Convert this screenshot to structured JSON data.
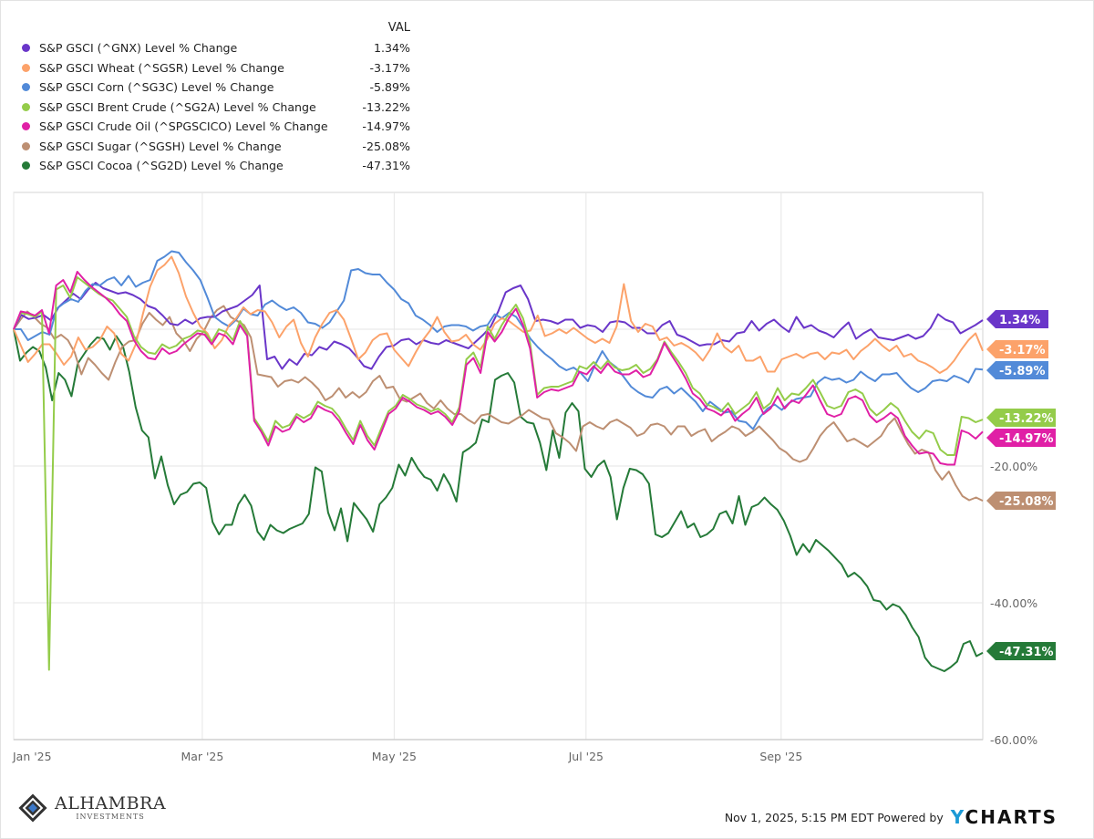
{
  "legend": {
    "header": "VAL",
    "items": [
      {
        "name": "S&P GSCI (^GNX) Level % Change",
        "value": "1.34%",
        "color": "#6a36c9"
      },
      {
        "name": "S&P GSCI Wheat (^SGSR) Level % Change",
        "value": "-3.17%",
        "color": "#fca26a"
      },
      {
        "name": "S&P GSCI Corn (^SG3C) Level % Change",
        "value": "-5.89%",
        "color": "#528ad8"
      },
      {
        "name": "S&P GSCI Brent Crude (^SG2A) Level % Change",
        "value": "-13.22%",
        "color": "#94cc4a"
      },
      {
        "name": "S&P GSCI Crude Oil (^SPGSCICO) Level % Change",
        "value": "-14.97%",
        "color": "#e020a6"
      },
      {
        "name": "S&P GSCI Sugar (^SGSH) Level % Change",
        "value": "-25.08%",
        "color": "#bd8f72"
      },
      {
        "name": "S&P GSCI Cocoa (^SG2D) Level % Change",
        "value": "-47.31%",
        "color": "#257a38"
      }
    ]
  },
  "footer": {
    "timestamp": "Nov 1, 2025, 5:15 PM EDT Powered by",
    "brand_y": "Y",
    "brand_rest": "CHARTS",
    "logo_main": "ALHAMBRA",
    "logo_sub": "INVESTMENTS"
  },
  "chart_data": {
    "type": "line",
    "title": "",
    "xlabel": "",
    "ylabel": "",
    "ylim": [
      -60,
      20
    ],
    "yticks": [
      0,
      -20,
      -40,
      -60
    ],
    "ytick_labels": [
      "",
      "-20.00%",
      "-40.00%",
      "-60.00%"
    ],
    "x_range": [
      "2025-01-02",
      "2025-10-31"
    ],
    "x_ticks": [
      "Jan '25",
      "Mar '25",
      "May '25",
      "Jul '25",
      "Sep '25"
    ],
    "x_tick_days": [
      0,
      58,
      117,
      176,
      236
    ],
    "x_total_days": 298,
    "grid": true,
    "legend_position": "top-left",
    "series": [
      {
        "name": "S&P GSCI (^GNX) Level % Change",
        "end_label": "1.34%",
        "color": "#6a36c9",
        "values": [
          0,
          2.1,
          1.5,
          1.7,
          2.1,
          1.3,
          3.2,
          4.2,
          5.2,
          4.4,
          5.8,
          6.8,
          6.0,
          5.6,
          5.2,
          5.4,
          5.0,
          4.4,
          3.4,
          3.0,
          2.0,
          0.8,
          0.6,
          1.4,
          0.8,
          1.6,
          1.8,
          1.8,
          2.6,
          3.0,
          3.4,
          4.2,
          5.0,
          6.4,
          -4.4,
          -4.0,
          -5.8,
          -4.4,
          -5.2,
          -3.6,
          -3.8,
          -2.6,
          -3.0,
          -1.8,
          -2.2,
          -2.8,
          -4.0,
          -5.4,
          -5.8,
          -4.0,
          -2.6,
          -2.4,
          -1.6,
          -1.4,
          -2.2,
          -1.6,
          -2.0,
          -2.2,
          -1.6,
          -2.0,
          -2.4,
          -2.8,
          -1.8,
          -0.8,
          0.4,
          2.6,
          5.4,
          6.0,
          6.4,
          4.4,
          1.2,
          1.4,
          1.2,
          0.8,
          1.4,
          1.4,
          0.2,
          0.6,
          0.4,
          -0.4,
          1.0,
          1.2,
          1.0,
          0.2,
          0.2,
          -0.6,
          -0.6,
          0.6,
          1.2,
          -0.8,
          -1.2,
          -1.8,
          -2.4,
          -2.2,
          -2.2,
          -1.6,
          -1.8,
          -0.6,
          -0.4,
          1.2,
          -0.2,
          0.8,
          1.4,
          0.4,
          -0.4,
          1.8,
          0.2,
          0.6,
          -0.2,
          -0.6,
          -1.2,
          0,
          1.0,
          -1.4,
          -0.6,
          0,
          -1.2,
          -1.4,
          -1.6,
          -1.2,
          -0.8,
          -1.4,
          -1.0,
          0.2,
          2.2,
          1.4,
          1.0,
          -0.6,
          0,
          0.6,
          1.34
        ]
      },
      {
        "name": "S&P GSCI Wheat (^SGSR) Level % Change",
        "end_label": "-3.17%",
        "color": "#fca26a",
        "values": [
          0,
          -2.4,
          -4.8,
          -3.6,
          -2.2,
          -2.2,
          -3.6,
          -5.2,
          -4.0,
          -1.2,
          -3.0,
          -2.6,
          -1.6,
          0.4,
          -0.6,
          -3.6,
          -4.6,
          -2.2,
          2.2,
          6.2,
          8.6,
          9.4,
          10.6,
          8.2,
          4.8,
          2.4,
          0.4,
          -0.6,
          -2.8,
          -1.6,
          0.6,
          1.6,
          3.2,
          2.2,
          2.8,
          2.6,
          1.0,
          -1.2,
          0.4,
          1.4,
          -2.0,
          -4.0,
          -1.2,
          0.8,
          2.4,
          2.8,
          1.4,
          -1.4,
          -4.4,
          -3.4,
          -1.6,
          -0.8,
          -0.6,
          -3.0,
          -4.2,
          -5.4,
          -3.4,
          -1.6,
          -0.2,
          1.8,
          -0.4,
          -1.8,
          -1.6,
          -0.8,
          -2.2,
          -3.0,
          -1.4,
          0.8,
          1.6,
          1.2,
          0.4,
          -0.4,
          -0.2,
          2.0,
          -1.0,
          -0.6,
          0.0,
          -0.6,
          0.2,
          -0.6,
          -1.4,
          -2.0,
          -1.4,
          -2.0,
          0.4,
          6.6,
          1.2,
          -0.4,
          0.8,
          0.4,
          -1.6,
          -1.2,
          -2.4,
          -2.0,
          -2.6,
          -3.4,
          -4.6,
          -3.0,
          -0.6,
          -2.6,
          -3.4,
          -2.4,
          -4.6,
          -4.6,
          -4.0,
          -6.2,
          -6.2,
          -4.4,
          -4.0,
          -3.6,
          -4.2,
          -3.6,
          -3.4,
          -4.4,
          -3.4,
          -3.6,
          -3.0,
          -4.4,
          -3.2,
          -2.4,
          -1.4,
          -2.4,
          -3.2,
          -2.4,
          -4.0,
          -3.6,
          -4.6,
          -5.0,
          -5.6,
          -6.4,
          -5.8,
          -4.6,
          -3.0,
          -1.6,
          -0.6,
          -3.17
        ]
      },
      {
        "name": "S&P GSCI Corn (^SG3C) Level % Change",
        "end_label": "-5.89%",
        "color": "#528ad8",
        "values": [
          0,
          0,
          -1.6,
          -1.0,
          -0.4,
          -0.8,
          3.0,
          3.8,
          4.4,
          4.0,
          5.6,
          6.6,
          6.4,
          7.2,
          7.6,
          6.4,
          7.8,
          6.2,
          6.8,
          7.2,
          10.0,
          10.6,
          11.4,
          11.2,
          9.8,
          8.6,
          7.2,
          4.6,
          1.8,
          1.0,
          0.4,
          1.4,
          3.0,
          2.2,
          2.0,
          3.6,
          4.2,
          3.4,
          2.8,
          3.2,
          2.4,
          1.0,
          0.8,
          0.2,
          1.0,
          2.6,
          4.2,
          8.6,
          8.8,
          8.2,
          8.0,
          8.0,
          6.8,
          5.8,
          4.4,
          3.8,
          2.0,
          1.4,
          0.6,
          -0.4,
          0.4,
          0.6,
          0.6,
          0.4,
          -0.2,
          0.4,
          0.6,
          2.2,
          1.6,
          2.4,
          1.8,
          0.2,
          -1.4,
          -2.6,
          -3.6,
          -4.4,
          -5.4,
          -6.0,
          -5.6,
          -6.4,
          -7.6,
          -5.2,
          -3.2,
          -4.8,
          -5.6,
          -7.0,
          -8.4,
          -9.2,
          -9.8,
          -10.0,
          -8.8,
          -8.4,
          -9.4,
          -8.6,
          -9.6,
          -10.6,
          -12.0,
          -10.6,
          -11.4,
          -12.2,
          -12.0,
          -13.4,
          -13.6,
          -14.6,
          -12.8,
          -11.6,
          -11.0,
          -11.8,
          -10.8,
          -10.2,
          -10.0,
          -9.8,
          -7.8,
          -7.0,
          -7.4,
          -7.2,
          -7.8,
          -7.4,
          -6.2,
          -7.0,
          -7.6,
          -6.6,
          -6.6,
          -6.4,
          -7.6,
          -8.6,
          -9.2,
          -8.6,
          -7.6,
          -7.4,
          -7.6,
          -6.8,
          -7.2,
          -7.8,
          -5.8,
          -5.89
        ]
      },
      {
        "name": "S&P GSCI Brent Crude (^SG2A) Level % Change",
        "end_label": "-13.22%",
        "color": "#94cc4a",
        "values": [
          0,
          2.4,
          2.2,
          1.8,
          2.6,
          -49.8,
          5.8,
          6.4,
          4.6,
          7.6,
          6.8,
          6.0,
          5.2,
          4.6,
          4.2,
          3.0,
          1.8,
          -1.0,
          -2.6,
          -3.4,
          -3.6,
          -2.2,
          -2.8,
          -2.4,
          -1.4,
          -1.0,
          -0.2,
          -0.4,
          -1.8,
          0.0,
          -0.4,
          -1.6,
          1.2,
          -0.6,
          -13.0,
          -14.6,
          -16.4,
          -13.4,
          -14.4,
          -14.0,
          -12.4,
          -13.0,
          -12.4,
          -10.6,
          -11.2,
          -11.6,
          -12.8,
          -14.6,
          -16.2,
          -13.4,
          -15.6,
          -17.0,
          -14.4,
          -12.0,
          -11.2,
          -9.6,
          -10.2,
          -11.0,
          -11.4,
          -12.0,
          -11.6,
          -12.4,
          -13.6,
          -11.4,
          -4.4,
          -3.4,
          -5.6,
          0.4,
          -1.4,
          0.6,
          2.2,
          3.6,
          1.6,
          -2.0,
          -9.6,
          -8.6,
          -8.4,
          -8.4,
          -8.0,
          -7.6,
          -5.4,
          -5.8,
          -4.8,
          -5.8,
          -4.6,
          -5.6,
          -6.0,
          -5.8,
          -5.2,
          -6.4,
          -5.8,
          -4.4,
          -1.8,
          -3.4,
          -4.8,
          -6.4,
          -8.6,
          -9.4,
          -11.0,
          -11.4,
          -12.0,
          -10.8,
          -12.4,
          -11.6,
          -10.8,
          -9.2,
          -11.6,
          -10.8,
          -8.6,
          -10.4,
          -9.4,
          -9.6,
          -8.6,
          -7.4,
          -9.2,
          -11.2,
          -11.6,
          -11.2,
          -9.2,
          -8.8,
          -9.4,
          -11.6,
          -12.6,
          -11.8,
          -10.8,
          -11.6,
          -13.4,
          -15.0,
          -16.0,
          -14.8,
          -15.2,
          -17.6,
          -18.4,
          -18.4,
          -12.8,
          -13.0,
          -13.6,
          -13.22
        ]
      },
      {
        "name": "S&P GSCI Crude Oil (^SPGSCICO) Level % Change",
        "end_label": "-14.97%",
        "color": "#e020a6",
        "values": [
          0,
          2.6,
          2.4,
          2.0,
          2.8,
          -0.6,
          6.4,
          7.2,
          5.4,
          8.4,
          7.2,
          6.2,
          5.4,
          4.6,
          3.6,
          2.2,
          1.2,
          -1.6,
          -3.2,
          -4.2,
          -4.4,
          -2.8,
          -3.6,
          -3.2,
          -2.2,
          -1.4,
          -0.6,
          -0.8,
          -2.2,
          -0.6,
          -1.0,
          -2.2,
          0.6,
          -1.0,
          -13.4,
          -15.0,
          -17.0,
          -14.2,
          -15.0,
          -14.6,
          -12.8,
          -13.6,
          -13.0,
          -11.2,
          -11.8,
          -12.2,
          -13.4,
          -15.2,
          -16.8,
          -14.0,
          -16.2,
          -17.6,
          -15.0,
          -12.4,
          -11.6,
          -10.0,
          -10.6,
          -11.4,
          -11.8,
          -12.4,
          -12.0,
          -12.8,
          -14.0,
          -12.0,
          -5.2,
          -4.2,
          -6.4,
          -0.4,
          -1.8,
          -0.4,
          1.6,
          3.0,
          0.6,
          -2.8,
          -10.0,
          -9.2,
          -8.8,
          -9.0,
          -8.6,
          -8.2,
          -6.2,
          -6.6,
          -5.4,
          -6.4,
          -5.0,
          -6.2,
          -6.6,
          -6.6,
          -6.0,
          -7.0,
          -6.6,
          -4.6,
          -2.0,
          -3.8,
          -5.4,
          -7.2,
          -9.4,
          -10.2,
          -11.6,
          -12.0,
          -12.6,
          -11.6,
          -13.4,
          -12.4,
          -11.6,
          -10.0,
          -12.4,
          -11.6,
          -9.8,
          -11.6,
          -10.4,
          -10.8,
          -9.6,
          -8.2,
          -10.4,
          -12.4,
          -12.8,
          -12.4,
          -10.2,
          -9.8,
          -10.4,
          -12.6,
          -13.6,
          -13.0,
          -12.2,
          -13.0,
          -15.6,
          -17.0,
          -18.2,
          -18.0,
          -18.2,
          -19.6,
          -19.8,
          -19.8,
          -14.8,
          -15.2,
          -16.0,
          -14.97
        ]
      },
      {
        "name": "S&P GSCI Sugar (^SGSH) Level % Change",
        "end_label": "-25.08%",
        "color": "#bd8f72",
        "values": [
          0,
          1.4,
          2.6,
          1.8,
          0.8,
          0.2,
          -1.4,
          -0.8,
          -1.6,
          -3.4,
          -6.6,
          -4.2,
          -5.2,
          -6.4,
          -7.4,
          -4.8,
          -2.6,
          -1.8,
          -1.6,
          0.8,
          2.4,
          1.4,
          0.6,
          1.8,
          -0.6,
          -1.6,
          -3.2,
          -1.4,
          -0.4,
          1.6,
          2.8,
          3.4,
          1.8,
          1.2,
          0.6,
          -1.2,
          -6.6,
          -6.8,
          -7.0,
          -8.4,
          -7.6,
          -7.4,
          -7.8,
          -7.0,
          -7.8,
          -8.8,
          -10.4,
          -9.8,
          -8.6,
          -10.0,
          -9.2,
          -10.0,
          -9.2,
          -7.6,
          -6.8,
          -8.6,
          -8.4,
          -10.2,
          -10.6,
          -10.0,
          -9.4,
          -10.8,
          -11.6,
          -10.4,
          -11.6,
          -12.4,
          -12.4,
          -13.2,
          -13.8,
          -12.6,
          -12.4,
          -13.0,
          -13.6,
          -13.8,
          -13.2,
          -12.6,
          -11.8,
          -12.4,
          -13.0,
          -13.2,
          -15.2,
          -15.8,
          -16.6,
          -17.8,
          -14.2,
          -13.6,
          -14.2,
          -14.6,
          -13.6,
          -13.2,
          -13.8,
          -14.4,
          -15.6,
          -15.2,
          -14.0,
          -13.8,
          -14.2,
          -15.4,
          -14.2,
          -14.2,
          -15.6,
          -15.0,
          -14.6,
          -16.4,
          -15.6,
          -15.0,
          -14.2,
          -14.6,
          -15.6,
          -15.0,
          -14.2,
          -15.2,
          -16.2,
          -17.4,
          -18.0,
          -19.0,
          -19.4,
          -19.0,
          -17.4,
          -15.6,
          -14.4,
          -13.6,
          -15.0,
          -16.4,
          -16.0,
          -16.6,
          -17.2,
          -16.4,
          -15.6,
          -14.0,
          -13.0,
          -15.0,
          -16.8,
          -18.2,
          -17.6,
          -18.0,
          -20.6,
          -22.0,
          -20.8,
          -22.8,
          -24.4,
          -25.0,
          -24.6,
          -25.08
        ]
      },
      {
        "name": "S&P GSCI Cocoa (^SG2D) Level % Change",
        "end_label": "-47.31%",
        "color": "#257a38",
        "values": [
          0,
          -4.6,
          -3.4,
          -2.6,
          -3.2,
          -5.6,
          -10.4,
          -6.4,
          -7.4,
          -9.8,
          -5.0,
          -3.6,
          -2.2,
          -1.2,
          -1.4,
          -3.0,
          -1.0,
          -2.4,
          -6.2,
          -11.4,
          -14.8,
          -15.8,
          -21.8,
          -18.6,
          -22.8,
          -25.6,
          -24.2,
          -23.8,
          -22.6,
          -22.4,
          -23.2,
          -28.2,
          -30.0,
          -28.6,
          -28.6,
          -25.6,
          -24.2,
          -25.8,
          -29.6,
          -30.8,
          -28.6,
          -29.4,
          -29.8,
          -29.2,
          -28.8,
          -28.4,
          -27.0,
          -20.2,
          -20.8,
          -26.8,
          -29.4,
          -26.2,
          -31.0,
          -25.4,
          -26.6,
          -27.8,
          -29.6,
          -25.6,
          -24.6,
          -23.2,
          -19.8,
          -21.4,
          -18.8,
          -20.4,
          -21.6,
          -22.0,
          -23.6,
          -21.2,
          -22.8,
          -25.2,
          -18.0,
          -17.4,
          -16.6,
          -13.2,
          -13.6,
          -7.4,
          -6.8,
          -6.4,
          -7.8,
          -12.8,
          -13.6,
          -13.8,
          -16.6,
          -20.6,
          -14.8,
          -18.8,
          -12.2,
          -10.8,
          -12.0,
          -20.4,
          -21.6,
          -20.0,
          -19.2,
          -21.6,
          -27.8,
          -23.2,
          -20.4,
          -20.6,
          -21.2,
          -22.6,
          -30.0,
          -30.4,
          -29.8,
          -28.2,
          -26.6,
          -29.0,
          -28.4,
          -30.4,
          -30.0,
          -29.2,
          -27.0,
          -26.6,
          -28.4,
          -24.4,
          -28.6,
          -26.0,
          -25.6,
          -24.6,
          -25.6,
          -26.4,
          -28.0,
          -30.2,
          -33.0,
          -31.4,
          -32.6,
          -30.8,
          -31.6,
          -32.4,
          -33.4,
          -34.4,
          -36.2,
          -35.6,
          -36.4,
          -37.6,
          -39.6,
          -39.8,
          -41.0,
          -40.2,
          -40.6,
          -41.8,
          -43.6,
          -45.0,
          -48.0,
          -49.2,
          -49.6,
          -50.0,
          -49.4,
          -48.6,
          -46.0,
          -45.6,
          -47.8,
          -47.31
        ]
      }
    ]
  }
}
